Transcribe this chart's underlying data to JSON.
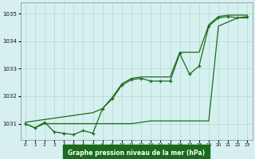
{
  "xlabel": "Graphe pression niveau de la mer (hPa)",
  "background_color": "#d6f0f0",
  "grid_color": "#b8ddd8",
  "line_color": "#1a6b1a",
  "x_values": [
    0,
    1,
    2,
    3,
    4,
    5,
    6,
    7,
    8,
    9,
    10,
    11,
    12,
    13,
    14,
    15,
    16,
    17,
    18,
    19,
    20,
    21,
    22,
    23
  ],
  "y_main": [
    1031.0,
    1030.85,
    1031.05,
    1030.7,
    1030.65,
    1030.6,
    1030.75,
    1030.65,
    1031.55,
    1031.9,
    1032.4,
    1032.6,
    1032.65,
    1032.55,
    1032.55,
    1032.55,
    1033.55,
    1032.8,
    1033.1,
    1034.55,
    1034.85,
    1034.9,
    1034.85,
    1034.9
  ],
  "y_min": [
    1031.0,
    1030.85,
    1031.0,
    1031.0,
    1031.0,
    1031.0,
    1031.0,
    1031.0,
    1031.0,
    1031.0,
    1031.0,
    1031.0,
    1031.05,
    1031.1,
    1031.1,
    1031.1,
    1031.1,
    1031.1,
    1031.1,
    1031.1,
    1034.55,
    1034.7,
    1034.85,
    1034.85
  ],
  "y_max": [
    1031.05,
    1031.1,
    1031.15,
    1031.2,
    1031.25,
    1031.3,
    1031.35,
    1031.4,
    1031.55,
    1031.95,
    1032.45,
    1032.65,
    1032.7,
    1032.7,
    1032.7,
    1032.7,
    1033.6,
    1033.6,
    1033.6,
    1034.6,
    1034.9,
    1034.95,
    1034.95,
    1034.95
  ],
  "ylim": [
    1030.4,
    1035.4
  ],
  "yticks": [
    1031,
    1032,
    1033,
    1034,
    1035
  ],
  "xticks": [
    0,
    1,
    2,
    3,
    4,
    5,
    6,
    7,
    8,
    9,
    10,
    11,
    12,
    13,
    14,
    15,
    16,
    17,
    18,
    19,
    20,
    21,
    22,
    23
  ]
}
